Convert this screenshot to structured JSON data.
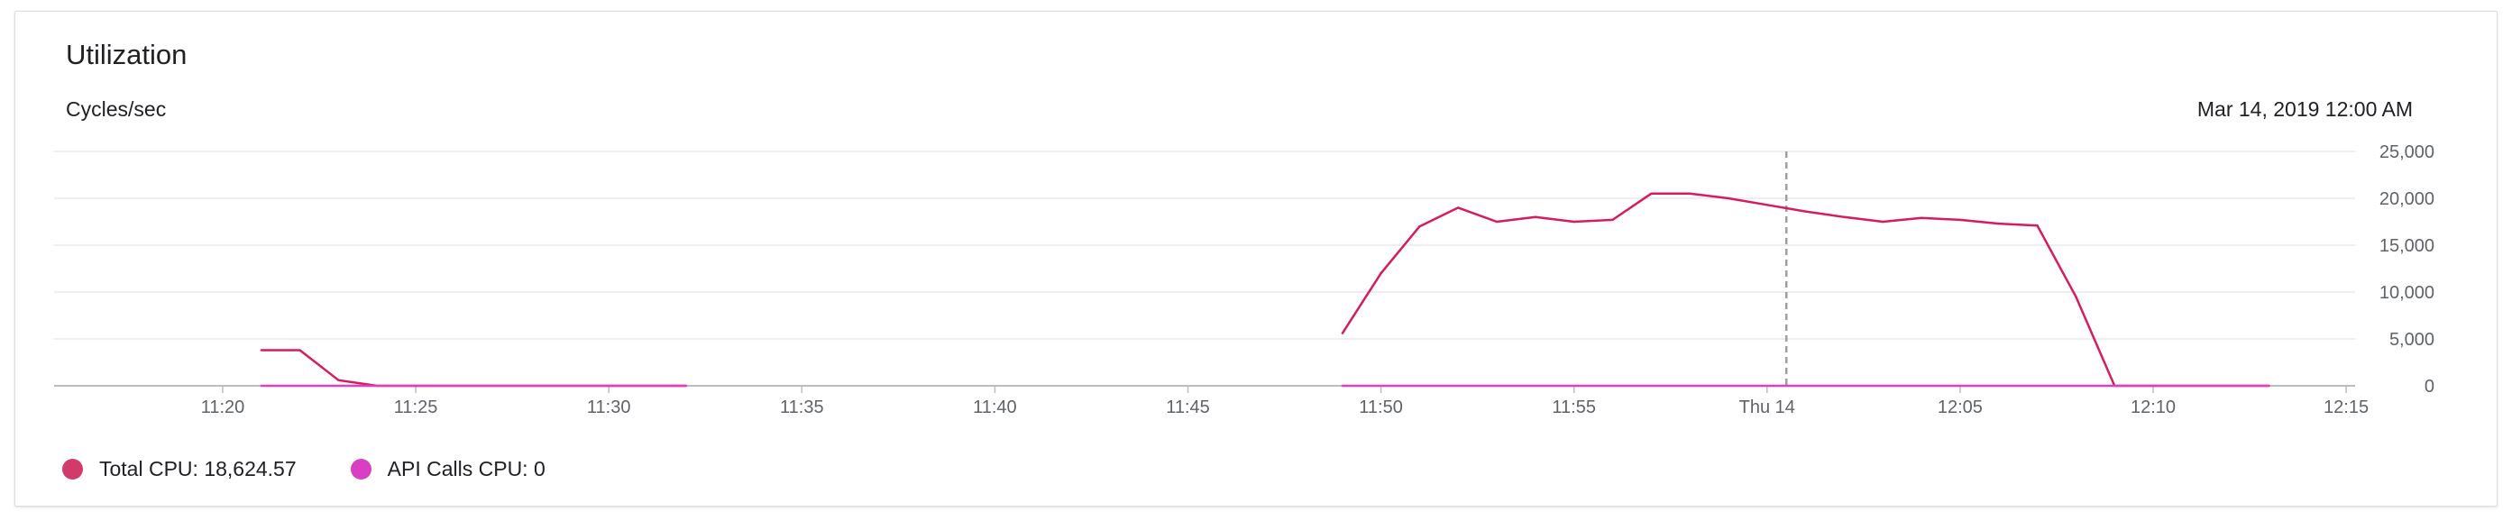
{
  "card": {
    "title": "Utilization",
    "unit_label": "Cycles/sec",
    "timestamp": "Mar 14, 2019 12:00 AM"
  },
  "colors": {
    "total_cpu": "#d81b60",
    "api_calls_cpu": "#e040b8",
    "gridline": "#e8e8e8",
    "axis": "#bdbdbd",
    "cursor": "#9e9e9e"
  },
  "legend": [
    {
      "label": "Total CPU: 18,624.57",
      "color": "#d23a6a"
    },
    {
      "label": "API Calls CPU: 0",
      "color": "#d93fc2"
    }
  ],
  "chart_data": {
    "type": "line",
    "title": "Utilization",
    "ylabel": "Cycles/sec",
    "ylim": [
      0,
      25000
    ],
    "y_ticks": [
      "25,000",
      "20,000",
      "15,000",
      "10,000",
      "5,000",
      "0"
    ],
    "x_ticks": [
      "11:20",
      "11:25",
      "11:30",
      "11:35",
      "11:40",
      "11:45",
      "11:50",
      "11:55",
      "Thu 14",
      "12:05",
      "12:10",
      "12:15"
    ],
    "cursor_time": "12:00:30",
    "grid": true,
    "legend_position": "bottom-left",
    "series": [
      {
        "name": "Total CPU",
        "segments": [
          [
            {
              "t": "11:21:00",
              "v": 3800
            },
            {
              "t": "11:22:00",
              "v": 3800
            },
            {
              "t": "11:23:00",
              "v": 600
            },
            {
              "t": "11:24:00",
              "v": 0
            },
            {
              "t": "11:32:00",
              "v": 0
            }
          ],
          [
            {
              "t": "11:49:00",
              "v": 5600
            },
            {
              "t": "11:50:00",
              "v": 12000
            },
            {
              "t": "11:51:00",
              "v": 17000
            },
            {
              "t": "11:52:00",
              "v": 19000
            },
            {
              "t": "11:53:00",
              "v": 17500
            },
            {
              "t": "11:54:00",
              "v": 18000
            },
            {
              "t": "11:55:00",
              "v": 17500
            },
            {
              "t": "11:56:00",
              "v": 17700
            },
            {
              "t": "11:57:00",
              "v": 20500
            },
            {
              "t": "11:58:00",
              "v": 20500
            },
            {
              "t": "11:59:00",
              "v": 20000
            },
            {
              "t": "12:00:00",
              "v": 19300
            },
            {
              "t": "12:01:00",
              "v": 18600
            },
            {
              "t": "12:02:00",
              "v": 18000
            },
            {
              "t": "12:03:00",
              "v": 17500
            },
            {
              "t": "12:04:00",
              "v": 17900
            },
            {
              "t": "12:05:00",
              "v": 17700
            },
            {
              "t": "12:06:00",
              "v": 17300
            },
            {
              "t": "12:07:00",
              "v": 17100
            },
            {
              "t": "12:08:00",
              "v": 9500
            },
            {
              "t": "12:09:00",
              "v": 0
            },
            {
              "t": "12:13:00",
              "v": 0
            }
          ]
        ]
      },
      {
        "name": "API Calls CPU",
        "segments": [
          [
            {
              "t": "11:21:00",
              "v": 0
            },
            {
              "t": "11:32:00",
              "v": 0
            }
          ],
          [
            {
              "t": "11:49:00",
              "v": 0
            },
            {
              "t": "12:13:00",
              "v": 0
            }
          ]
        ]
      }
    ]
  }
}
